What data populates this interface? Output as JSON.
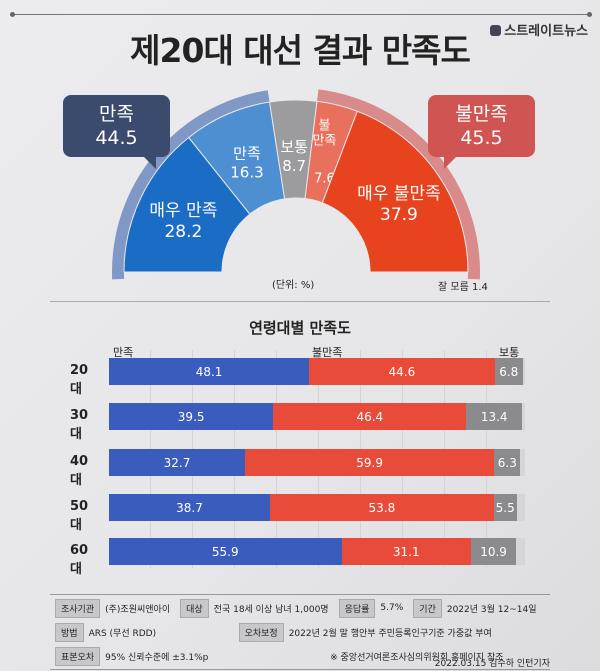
{
  "header": {
    "logo": "스트레이트뉴스",
    "title": "제20대 대선 결과 만족도"
  },
  "summary": {
    "satisfied_label": "만족",
    "satisfied_value": "44.5",
    "dissatisfied_label": "불만족",
    "dissatisfied_value": "45.5"
  },
  "chart_data": [
    {
      "type": "pie",
      "subtype": "semi-donut",
      "unit": "(단위: %)",
      "slices": [
        {
          "label": "매우 만족",
          "value": 28.2,
          "color": "#1b6cc4"
        },
        {
          "label": "만족",
          "value": 16.3,
          "color": "#4e8fd1"
        },
        {
          "label": "보통",
          "value": 8.7,
          "color": "#9c9c9e"
        },
        {
          "label": "불만족",
          "value": 7.6,
          "color": "#e8705c"
        },
        {
          "label": "매우 불만족",
          "value": 37.9,
          "color": "#e8431f"
        }
      ],
      "annotation": "잘 모름 1.4"
    },
    {
      "type": "bar",
      "subtype": "stacked-horizontal",
      "title": "연령대별 만족도",
      "categories": [
        "20대",
        "30대",
        "40대",
        "50대",
        "60대"
      ],
      "series": [
        {
          "name": "만족",
          "values": [
            48.1,
            39.5,
            32.7,
            38.7,
            55.9
          ],
          "color": "#3a5dbd"
        },
        {
          "name": "불만족",
          "values": [
            44.6,
            46.4,
            59.9,
            53.8,
            31.1
          ],
          "color": "#e94b3b"
        },
        {
          "name": "보통",
          "values": [
            6.8,
            13.4,
            6.3,
            5.5,
            10.9
          ],
          "color": "#8b8b8d"
        }
      ],
      "xlim": [
        0,
        100
      ]
    }
  ],
  "info": {
    "org_label": "조사기관",
    "org": "(주)조원씨앤아이",
    "target_label": "대상",
    "target": "전국 18세 이상 남녀 1,000명",
    "rate_label": "응답률",
    "rate": "5.7%",
    "period_label": "기간",
    "period": "2022년 3월 12~14일",
    "method_label": "방법",
    "method": "ARS (무선 RDD)",
    "weight_label": "오차보정",
    "weight": "2022년 2월 말 행안부 주민등록인구기준 가중값 부여",
    "error_label": "표본오차",
    "error": "95% 신뢰수준에 ±3.1%p",
    "note": "※ 중앙선거여론조사심의위원회 홈페이지 참조"
  },
  "credit": "2022.03.15 김수하 인턴기자"
}
